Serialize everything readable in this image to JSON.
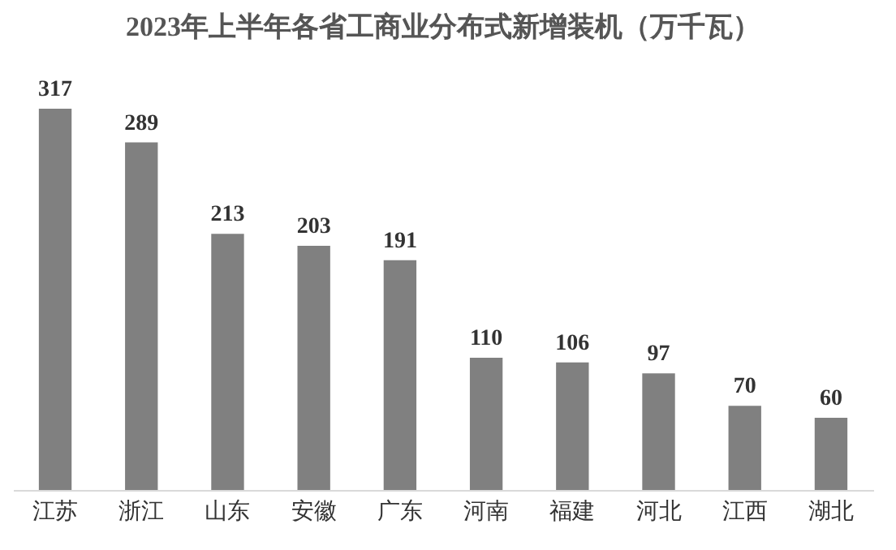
{
  "chart_data": {
    "type": "bar",
    "title": "2023年上半年各省工商业分布式新增装机（万千瓦）",
    "categories": [
      "江苏",
      "浙江",
      "山东",
      "安徽",
      "广东",
      "河南",
      "福建",
      "河北",
      "江西",
      "湖北"
    ],
    "values": [
      317,
      289,
      213,
      203,
      191,
      110,
      106,
      97,
      70,
      60
    ],
    "color": "#808080",
    "data_labels": true
  }
}
